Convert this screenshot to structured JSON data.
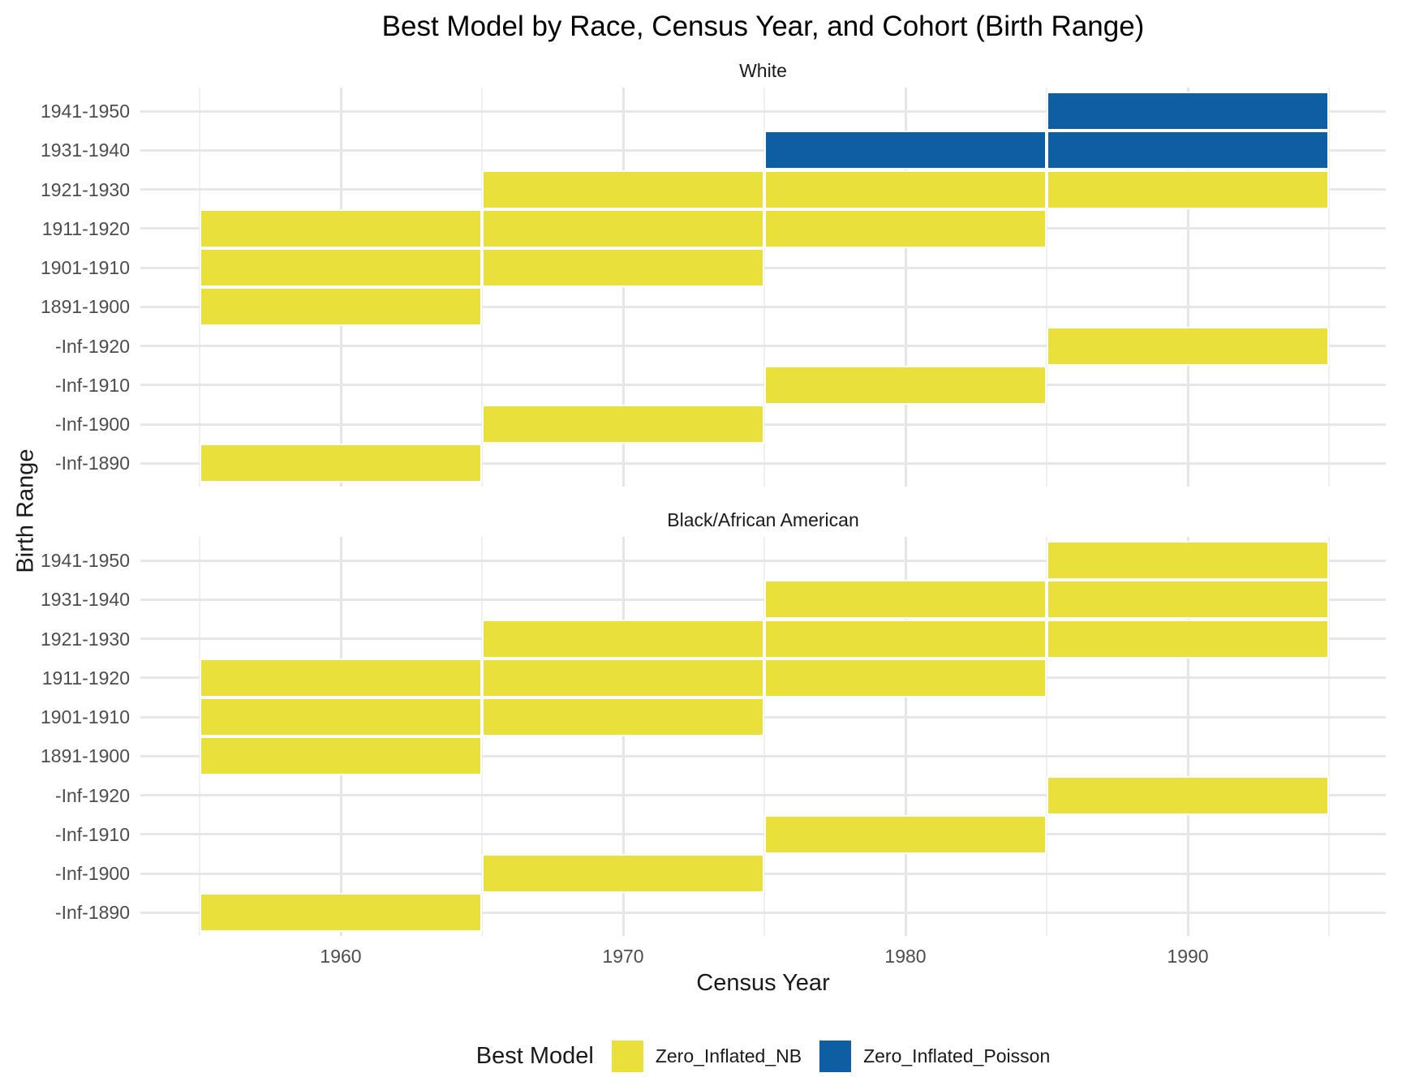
{
  "title": "Best Model by Race, Census Year, and Cohort (Birth Range)",
  "axes": {
    "x_label": "Census Year",
    "y_label": "Birth Range"
  },
  "legend": {
    "title": "Best Model",
    "position": "bottom",
    "items": [
      {
        "label": "Zero_Inflated_NB",
        "color": "#EAE03B"
      },
      {
        "label": "Zero_Inflated_Poisson",
        "color": "#0D5EA2"
      }
    ]
  },
  "chart_data": {
    "type": "heatmap",
    "title": "Best Model by Race, Census Year, and Cohort (Birth Range)",
    "xlabel": "Census Year",
    "ylabel": "Birth Range",
    "grid": true,
    "legend_position": "bottom",
    "x_axis": {
      "ticks": [
        1960,
        1970,
        1980,
        1990
      ],
      "tile_edges": [
        1955,
        1965,
        1975,
        1985,
        1995
      ],
      "range": [
        1953,
        1997
      ]
    },
    "y_categories_top_to_bottom": [
      "1941-1950",
      "1931-1940",
      "1921-1930",
      "1911-1920",
      "1901-1910",
      "1891-1900",
      "-Inf-1920",
      "-Inf-1910",
      "-Inf-1900",
      "-Inf-1890"
    ],
    "fill_colors": {
      "Zero_Inflated_NB": "#EAE03B",
      "Zero_Inflated_Poisson": "#0D5EA2"
    },
    "facets": [
      {
        "label": "White",
        "tiles": [
          {
            "row": "1941-1950",
            "start": 1985,
            "end": 1995,
            "model": "Zero_Inflated_Poisson"
          },
          {
            "row": "1931-1940",
            "start": 1975,
            "end": 1985,
            "model": "Zero_Inflated_Poisson"
          },
          {
            "row": "1931-1940",
            "start": 1985,
            "end": 1995,
            "model": "Zero_Inflated_Poisson"
          },
          {
            "row": "1921-1930",
            "start": 1965,
            "end": 1975,
            "model": "Zero_Inflated_NB"
          },
          {
            "row": "1921-1930",
            "start": 1975,
            "end": 1985,
            "model": "Zero_Inflated_NB"
          },
          {
            "row": "1921-1930",
            "start": 1985,
            "end": 1995,
            "model": "Zero_Inflated_NB"
          },
          {
            "row": "1911-1920",
            "start": 1955,
            "end": 1965,
            "model": "Zero_Inflated_NB"
          },
          {
            "row": "1911-1920",
            "start": 1965,
            "end": 1975,
            "model": "Zero_Inflated_NB"
          },
          {
            "row": "1911-1920",
            "start": 1975,
            "end": 1985,
            "model": "Zero_Inflated_NB"
          },
          {
            "row": "1901-1910",
            "start": 1955,
            "end": 1965,
            "model": "Zero_Inflated_NB"
          },
          {
            "row": "1901-1910",
            "start": 1965,
            "end": 1975,
            "model": "Zero_Inflated_NB"
          },
          {
            "row": "1891-1900",
            "start": 1955,
            "end": 1965,
            "model": "Zero_Inflated_NB"
          },
          {
            "row": "-Inf-1920",
            "start": 1985,
            "end": 1995,
            "model": "Zero_Inflated_NB"
          },
          {
            "row": "-Inf-1910",
            "start": 1975,
            "end": 1985,
            "model": "Zero_Inflated_NB"
          },
          {
            "row": "-Inf-1900",
            "start": 1965,
            "end": 1975,
            "model": "Zero_Inflated_NB"
          },
          {
            "row": "-Inf-1890",
            "start": 1955,
            "end": 1965,
            "model": "Zero_Inflated_NB"
          }
        ]
      },
      {
        "label": "Black/African American",
        "tiles": [
          {
            "row": "1941-1950",
            "start": 1985,
            "end": 1995,
            "model": "Zero_Inflated_NB"
          },
          {
            "row": "1931-1940",
            "start": 1975,
            "end": 1985,
            "model": "Zero_Inflated_NB"
          },
          {
            "row": "1931-1940",
            "start": 1985,
            "end": 1995,
            "model": "Zero_Inflated_NB"
          },
          {
            "row": "1921-1930",
            "start": 1965,
            "end": 1975,
            "model": "Zero_Inflated_NB"
          },
          {
            "row": "1921-1930",
            "start": 1975,
            "end": 1985,
            "model": "Zero_Inflated_NB"
          },
          {
            "row": "1921-1930",
            "start": 1985,
            "end": 1995,
            "model": "Zero_Inflated_NB"
          },
          {
            "row": "1911-1920",
            "start": 1955,
            "end": 1965,
            "model": "Zero_Inflated_NB"
          },
          {
            "row": "1911-1920",
            "start": 1965,
            "end": 1975,
            "model": "Zero_Inflated_NB"
          },
          {
            "row": "1911-1920",
            "start": 1975,
            "end": 1985,
            "model": "Zero_Inflated_NB"
          },
          {
            "row": "1901-1910",
            "start": 1955,
            "end": 1965,
            "model": "Zero_Inflated_NB"
          },
          {
            "row": "1901-1910",
            "start": 1965,
            "end": 1975,
            "model": "Zero_Inflated_NB"
          },
          {
            "row": "1891-1900",
            "start": 1955,
            "end": 1965,
            "model": "Zero_Inflated_NB"
          },
          {
            "row": "-Inf-1920",
            "start": 1985,
            "end": 1995,
            "model": "Zero_Inflated_NB"
          },
          {
            "row": "-Inf-1910",
            "start": 1975,
            "end": 1985,
            "model": "Zero_Inflated_NB"
          },
          {
            "row": "-Inf-1900",
            "start": 1965,
            "end": 1975,
            "model": "Zero_Inflated_NB"
          },
          {
            "row": "-Inf-1890",
            "start": 1955,
            "end": 1965,
            "model": "Zero_Inflated_NB"
          }
        ]
      }
    ]
  }
}
